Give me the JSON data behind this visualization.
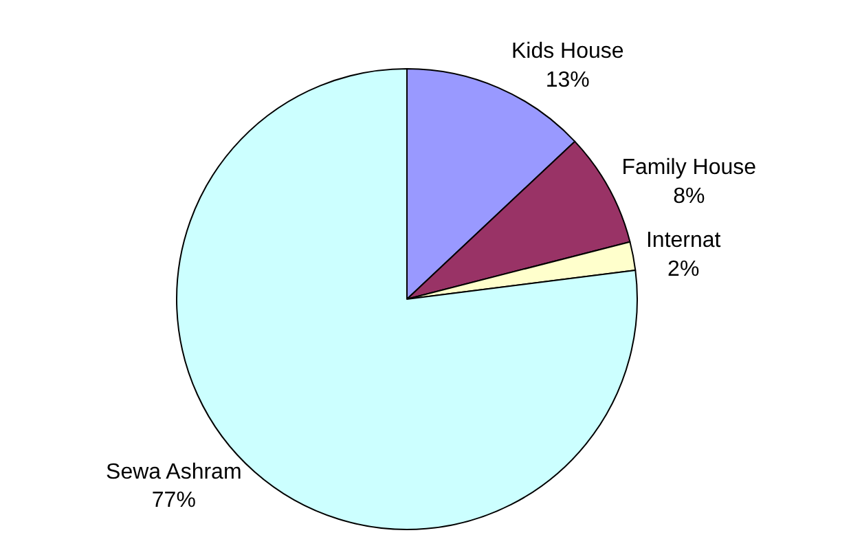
{
  "chart_data": {
    "type": "pie",
    "categories": [
      "Kids House",
      "Family House",
      "Internat",
      "Sewa Ashram"
    ],
    "values": [
      13,
      8,
      2,
      77
    ],
    "value_labels": [
      "13%",
      "8%",
      "2%",
      "77%"
    ],
    "colors": [
      "#9999ff",
      "#993366",
      "#ffffcc",
      "#ccffff"
    ],
    "legend": false
  }
}
